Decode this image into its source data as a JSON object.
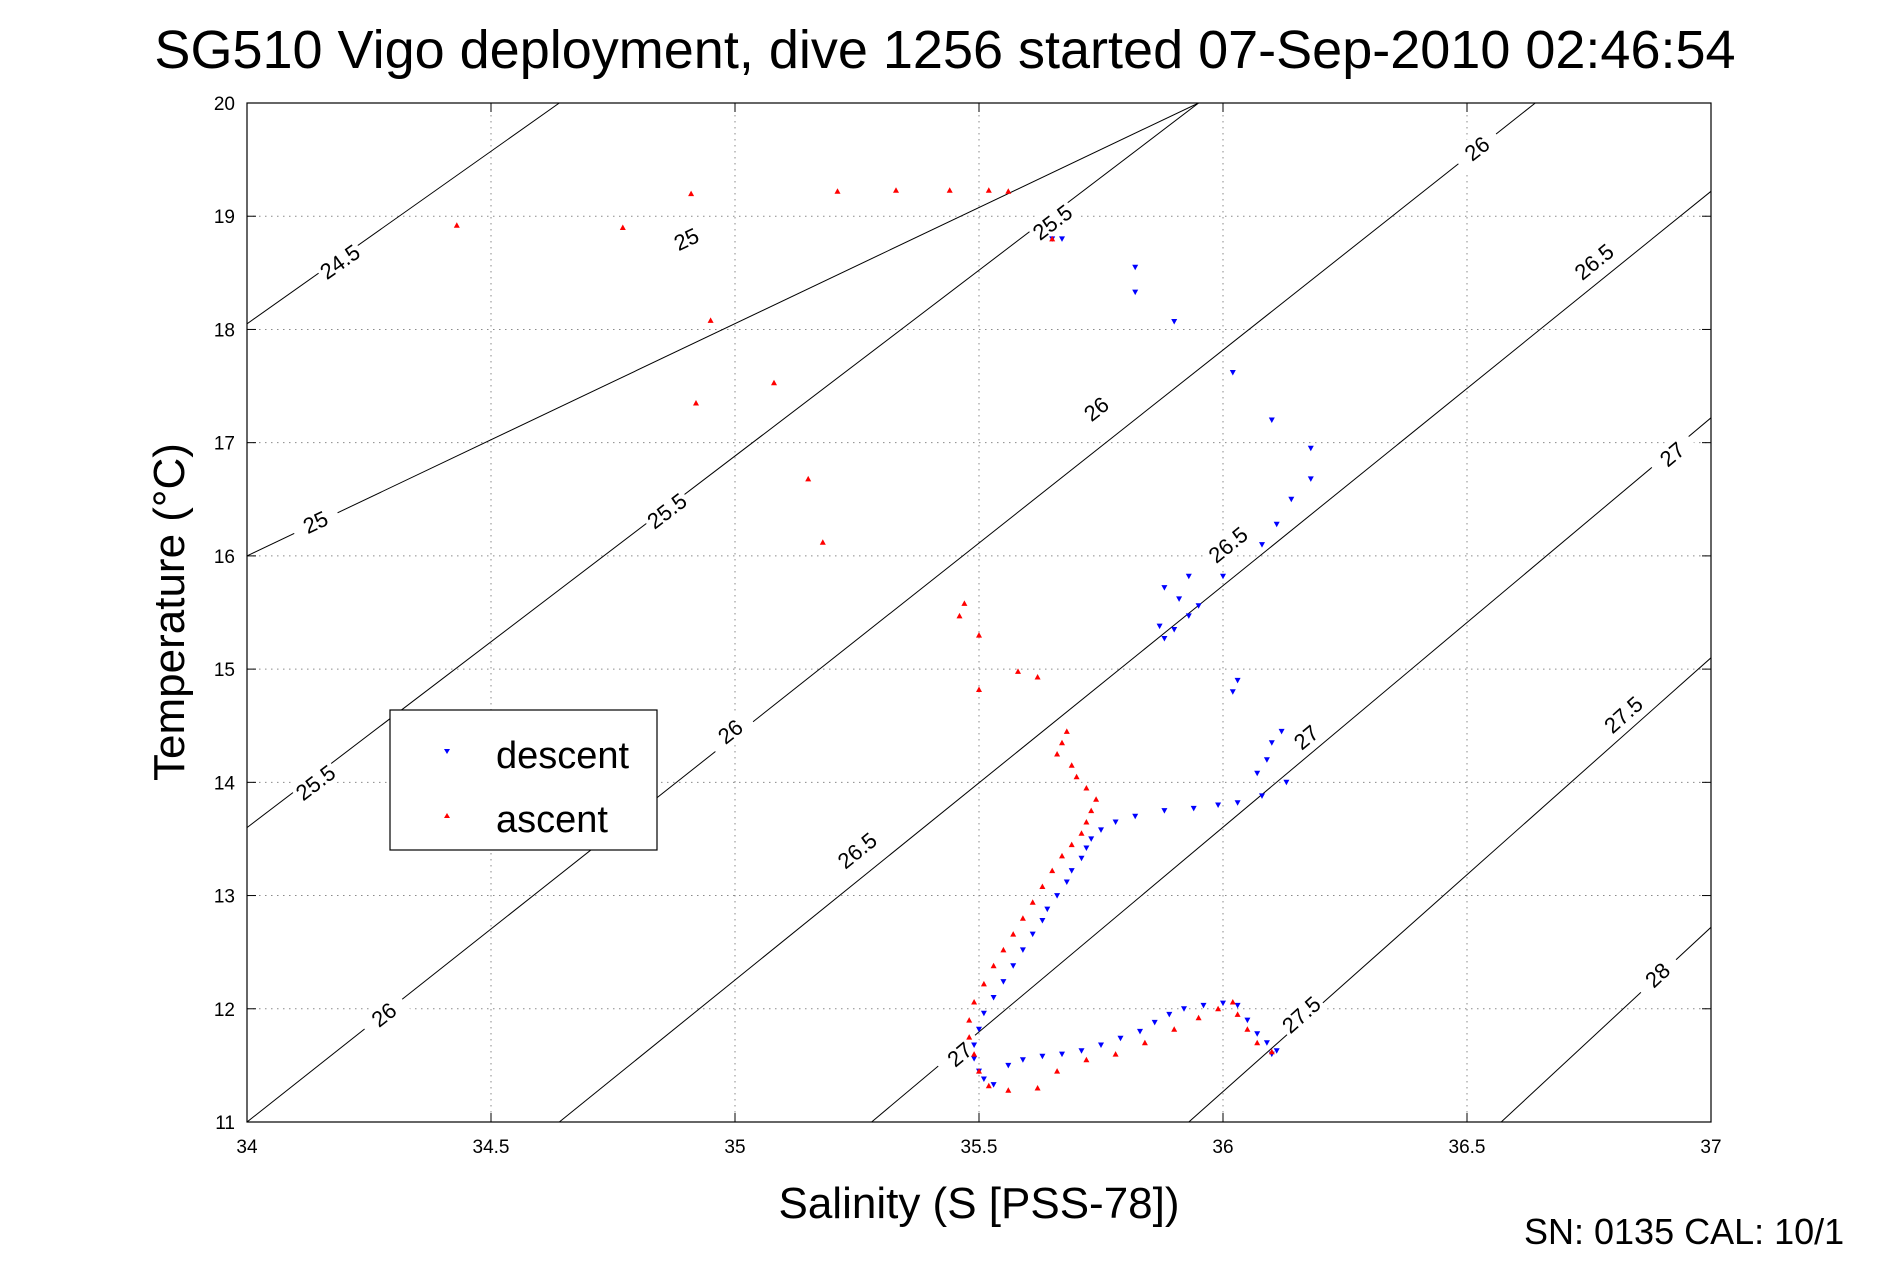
{
  "chart_data": {
    "type": "scatter",
    "title": "SG510 Vigo deployment, dive 1256 started 07-Sep-2010 02:46:54",
    "xlabel": "Salinity (S [PSS-78])",
    "ylabel": "Temperature (°C)",
    "xlim": [
      34,
      37
    ],
    "ylim": [
      11,
      20
    ],
    "x_ticks": [
      "34",
      "34.5",
      "35",
      "35.5",
      "36",
      "36.5",
      "37"
    ],
    "y_ticks": [
      "11",
      "12",
      "13",
      "14",
      "15",
      "16",
      "17",
      "18",
      "19",
      "20"
    ],
    "grid": true,
    "legend_position": "left-middle",
    "footer": "SN: 0135  CAL: 10/1",
    "contours": [
      {
        "level": "24.5",
        "points": [
          [
            34.0,
            18.05
          ],
          [
            34.64,
            20.0
          ]
        ],
        "labels": [
          {
            "x": 34.19,
            "y": 18.6
          }
        ]
      },
      {
        "level": "25",
        "points": [
          [
            34.0,
            16.0
          ],
          [
            35.95,
            20.0
          ]
        ],
        "labels": [
          {
            "x": 34.14,
            "y": 16.3
          },
          {
            "x": 34.9,
            "y": 18.8
          }
        ]
      },
      {
        "level": "25.5",
        "points": [
          [
            34.0,
            13.6
          ],
          [
            35.95,
            20.0
          ]
        ],
        "labels": [
          {
            "x": 34.14,
            "y": 14.0
          },
          {
            "x": 34.86,
            "y": 16.4
          },
          {
            "x": 35.65,
            "y": 18.95
          }
        ]
      },
      {
        "level": "26",
        "points": [
          [
            34.0,
            11.0
          ],
          [
            36.64,
            20.0
          ]
        ],
        "labels": [
          {
            "x": 34.28,
            "y": 11.95
          },
          {
            "x": 34.99,
            "y": 14.45
          },
          {
            "x": 35.74,
            "y": 17.3
          },
          {
            "x": 36.52,
            "y": 19.6
          }
        ]
      },
      {
        "level": "26.5",
        "points": [
          [
            34.64,
            11.0
          ],
          [
            37.0,
            19.22
          ]
        ],
        "labels": [
          {
            "x": 35.25,
            "y": 13.4
          },
          {
            "x": 36.01,
            "y": 16.1
          },
          {
            "x": 36.76,
            "y": 18.6
          }
        ]
      },
      {
        "level": "27",
        "points": [
          [
            35.28,
            11.0
          ],
          [
            37.0,
            17.22
          ]
        ],
        "labels": [
          {
            "x": 35.46,
            "y": 11.6
          },
          {
            "x": 36.17,
            "y": 14.4
          },
          {
            "x": 36.92,
            "y": 16.9
          }
        ]
      },
      {
        "level": "27.5",
        "points": [
          [
            35.93,
            11.0
          ],
          [
            37.0,
            15.1
          ]
        ],
        "labels": [
          {
            "x": 36.16,
            "y": 11.95
          },
          {
            "x": 36.82,
            "y": 14.6
          }
        ]
      },
      {
        "level": "28",
        "points": [
          [
            36.57,
            11.0
          ],
          [
            37.0,
            12.72
          ]
        ],
        "labels": [
          {
            "x": 36.89,
            "y": 12.3
          }
        ]
      }
    ],
    "series": [
      {
        "name": "descent",
        "color": "#0000ff",
        "marker": "triangle-down",
        "points": [
          [
            35.65,
            18.8
          ],
          [
            35.67,
            18.8
          ],
          [
            35.82,
            18.55
          ],
          [
            35.82,
            18.33
          ],
          [
            35.9,
            18.07
          ],
          [
            36.02,
            17.62
          ],
          [
            36.1,
            17.2
          ],
          [
            36.18,
            16.95
          ],
          [
            36.18,
            16.68
          ],
          [
            36.14,
            16.5
          ],
          [
            36.11,
            16.28
          ],
          [
            36.08,
            16.1
          ],
          [
            36.0,
            15.82
          ],
          [
            35.93,
            15.82
          ],
          [
            35.88,
            15.72
          ],
          [
            35.91,
            15.62
          ],
          [
            35.95,
            15.56
          ],
          [
            35.93,
            15.47
          ],
          [
            35.87,
            15.38
          ],
          [
            35.9,
            15.35
          ],
          [
            35.88,
            15.27
          ],
          [
            36.03,
            14.9
          ],
          [
            36.02,
            14.8
          ],
          [
            36.12,
            14.45
          ],
          [
            36.1,
            14.35
          ],
          [
            36.09,
            14.2
          ],
          [
            36.07,
            14.08
          ],
          [
            36.13,
            14.0
          ],
          [
            36.08,
            13.88
          ],
          [
            36.03,
            13.82
          ],
          [
            35.99,
            13.8
          ],
          [
            35.94,
            13.77
          ],
          [
            35.88,
            13.75
          ],
          [
            35.82,
            13.7
          ],
          [
            35.78,
            13.65
          ],
          [
            35.75,
            13.58
          ],
          [
            35.73,
            13.5
          ],
          [
            35.72,
            13.42
          ],
          [
            35.71,
            13.33
          ],
          [
            35.69,
            13.22
          ],
          [
            35.68,
            13.12
          ],
          [
            35.66,
            13.0
          ],
          [
            35.64,
            12.88
          ],
          [
            35.63,
            12.78
          ],
          [
            35.61,
            12.66
          ],
          [
            35.59,
            12.52
          ],
          [
            35.57,
            12.38
          ],
          [
            35.55,
            12.24
          ],
          [
            35.53,
            12.1
          ],
          [
            35.51,
            11.96
          ],
          [
            35.5,
            11.82
          ],
          [
            35.49,
            11.68
          ],
          [
            35.49,
            11.56
          ],
          [
            35.5,
            11.45
          ],
          [
            35.51,
            11.38
          ],
          [
            35.53,
            11.33
          ],
          [
            35.56,
            11.5
          ],
          [
            35.59,
            11.55
          ],
          [
            35.63,
            11.58
          ],
          [
            35.67,
            11.6
          ],
          [
            35.71,
            11.63
          ],
          [
            35.75,
            11.68
          ],
          [
            35.79,
            11.74
          ],
          [
            35.83,
            11.8
          ],
          [
            35.86,
            11.88
          ],
          [
            35.89,
            11.95
          ],
          [
            35.92,
            12.0
          ],
          [
            35.96,
            12.03
          ],
          [
            36.0,
            12.05
          ],
          [
            36.03,
            12.03
          ],
          [
            36.05,
            11.9
          ],
          [
            36.07,
            11.78
          ],
          [
            36.09,
            11.7
          ],
          [
            36.11,
            11.63
          ],
          [
            36.1,
            11.6
          ]
        ]
      },
      {
        "name": "ascent",
        "color": "#ff0000",
        "marker": "triangle-up",
        "points": [
          [
            34.43,
            18.92
          ],
          [
            34.77,
            18.9
          ],
          [
            34.91,
            19.2
          ],
          [
            35.21,
            19.22
          ],
          [
            35.33,
            19.23
          ],
          [
            35.44,
            19.23
          ],
          [
            35.52,
            19.23
          ],
          [
            35.56,
            19.22
          ],
          [
            35.65,
            18.8
          ],
          [
            34.95,
            18.08
          ],
          [
            35.08,
            17.53
          ],
          [
            34.92,
            17.35
          ],
          [
            35.15,
            16.68
          ],
          [
            35.18,
            16.12
          ],
          [
            35.47,
            15.58
          ],
          [
            35.46,
            15.47
          ],
          [
            35.5,
            15.3
          ],
          [
            35.58,
            14.98
          ],
          [
            35.62,
            14.93
          ],
          [
            35.5,
            14.82
          ],
          [
            35.68,
            14.45
          ],
          [
            35.67,
            14.35
          ],
          [
            35.66,
            14.25
          ],
          [
            35.69,
            14.15
          ],
          [
            35.7,
            14.05
          ],
          [
            35.72,
            13.95
          ],
          [
            35.74,
            13.85
          ],
          [
            35.73,
            13.75
          ],
          [
            35.72,
            13.65
          ],
          [
            35.71,
            13.55
          ],
          [
            35.69,
            13.45
          ],
          [
            35.67,
            13.35
          ],
          [
            35.65,
            13.22
          ],
          [
            35.63,
            13.08
          ],
          [
            35.61,
            12.94
          ],
          [
            35.59,
            12.8
          ],
          [
            35.57,
            12.66
          ],
          [
            35.55,
            12.52
          ],
          [
            35.53,
            12.38
          ],
          [
            35.51,
            12.22
          ],
          [
            35.49,
            12.06
          ],
          [
            35.48,
            11.9
          ],
          [
            35.48,
            11.75
          ],
          [
            35.49,
            11.6
          ],
          [
            35.5,
            11.45
          ],
          [
            35.52,
            11.32
          ],
          [
            35.56,
            11.28
          ],
          [
            35.62,
            11.3
          ],
          [
            35.66,
            11.45
          ],
          [
            35.72,
            11.55
          ],
          [
            35.78,
            11.6
          ],
          [
            35.84,
            11.7
          ],
          [
            35.9,
            11.82
          ],
          [
            35.95,
            11.92
          ],
          [
            35.99,
            12.0
          ],
          [
            36.02,
            12.06
          ],
          [
            36.03,
            11.95
          ],
          [
            36.05,
            11.82
          ],
          [
            36.07,
            11.7
          ],
          [
            36.1,
            11.62
          ]
        ]
      }
    ]
  }
}
